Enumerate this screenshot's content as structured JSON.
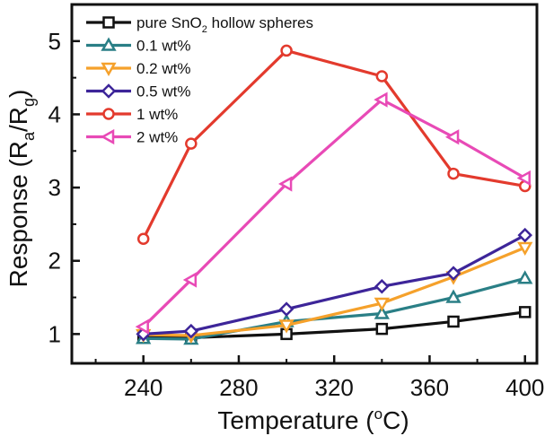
{
  "chart_data": {
    "type": "line",
    "xlabel": "Temperature (°C)",
    "xlabel_main": "Temperature (",
    "xlabel_sup": "o",
    "xlabel_unit": "C)",
    "ylabel": "Response (Ra/Rg)",
    "ylabel_main": "Response (R",
    "ylabel_sub1": "a",
    "ylabel_mid": "/R",
    "ylabel_sub2": "g",
    "ylabel_end": ")",
    "xlim": [
      210,
      405
    ],
    "ylim": [
      0.6,
      5.5
    ],
    "xticks": [
      240,
      280,
      320,
      360,
      400
    ],
    "yticks": [
      1,
      2,
      3,
      4,
      5
    ],
    "grid": false,
    "legend_position": "top-left",
    "x": [
      240,
      260,
      300,
      340,
      370,
      400
    ],
    "series": [
      {
        "name": "pure SnO2 hollow spheres",
        "name_main": "pure SnO",
        "name_sub": "2",
        "name_rest": " hollow spheres",
        "values": [
          0.97,
          0.95,
          1.0,
          1.07,
          1.17,
          1.3
        ],
        "color": "#111111",
        "marker": "square"
      },
      {
        "name": "0.1 wt%",
        "values": [
          0.94,
          0.93,
          1.17,
          1.28,
          1.5,
          1.76
        ],
        "color": "#2a7f86",
        "marker": "triangle-up"
      },
      {
        "name": "0.2 wt%",
        "values": [
          0.99,
          0.98,
          1.12,
          1.42,
          1.78,
          2.18
        ],
        "color": "#f5a12b",
        "marker": "triangle-down"
      },
      {
        "name": "0.5 wt%",
        "values": [
          1.0,
          1.04,
          1.34,
          1.65,
          1.83,
          2.35
        ],
        "color": "#3d2599",
        "marker": "diamond"
      },
      {
        "name": "1 wt%",
        "values": [
          2.3,
          3.6,
          4.87,
          4.52,
          3.19,
          3.02
        ],
        "color": "#e33a2d",
        "marker": "circle"
      },
      {
        "name": "2 wt%",
        "values": [
          1.1,
          1.74,
          3.05,
          4.2,
          3.69,
          3.13
        ],
        "color": "#e84ab6",
        "marker": "triangle-left"
      }
    ]
  }
}
